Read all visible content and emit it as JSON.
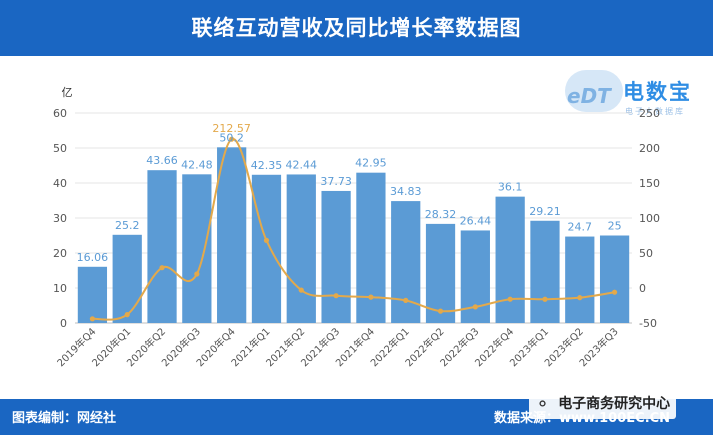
{
  "header": {
    "title": "联络互动营收及同比增长率数据图"
  },
  "logo": {
    "letters": "eDT",
    "name": "电数宝",
    "subtitle": "电子大数据库"
  },
  "footer": {
    "left_text": "图表编制：网经社",
    "right_text": "数据来源：www.100EC.CN",
    "wechat_name": "电子商务研究中心"
  },
  "colors": {
    "header_bg": "#1a66c2",
    "bar": "#5b9bd5",
    "line": "#e3a94b",
    "bar_label": "#5b9bd5",
    "line_label": "#e3a94b"
  },
  "chart_data": {
    "type": "bar",
    "categories": [
      "2019年Q4",
      "2020年Q1",
      "2020年Q2",
      "2020年Q3",
      "2020年Q4",
      "2021年Q1",
      "2021年Q2",
      "2021年Q3",
      "2021年Q4",
      "2022年Q1",
      "2022年Q2",
      "2022年Q3",
      "2022年Q4",
      "2023年Q1",
      "2023年Q2",
      "2023年Q3"
    ],
    "ylabel": "亿",
    "ylim": [
      0,
      60
    ],
    "y_ticks": [
      "0",
      "10",
      "20",
      "30",
      "40",
      "50",
      "60"
    ],
    "y2lim": [
      -50,
      250
    ],
    "y2_ticks": [
      "-50",
      "0",
      "50",
      "100",
      "150",
      "200",
      "250"
    ],
    "series": [
      {
        "type": "bar",
        "axis": "left",
        "values": [
          16.06,
          25.2,
          43.66,
          42.48,
          50.2,
          42.35,
          42.44,
          37.73,
          42.95,
          34.83,
          28.32,
          26.44,
          36.1,
          29.21,
          24.7,
          25
        ],
        "labels": [
          "16.06",
          "25.2",
          "43.66",
          "42.48",
          "50.2",
          "42.35",
          "42.44",
          "37.73",
          "42.95",
          "34.83",
          "28.32",
          "26.44",
          "36.1",
          "29.21",
          "24.7",
          "25"
        ]
      },
      {
        "type": "line",
        "axis": "right",
        "values": [
          -44,
          -38,
          29,
          20,
          212.57,
          68,
          -3,
          -11,
          -13,
          -17.7,
          -33,
          -27,
          -16,
          -16.1,
          -13.8,
          -6
        ],
        "labels": [
          "",
          "",
          "",
          "",
          "212.57",
          "",
          "",
          "",
          "",
          "",
          "",
          "",
          "",
          "",
          "",
          ""
        ]
      }
    ],
    "legend": "none",
    "grid": true
  }
}
